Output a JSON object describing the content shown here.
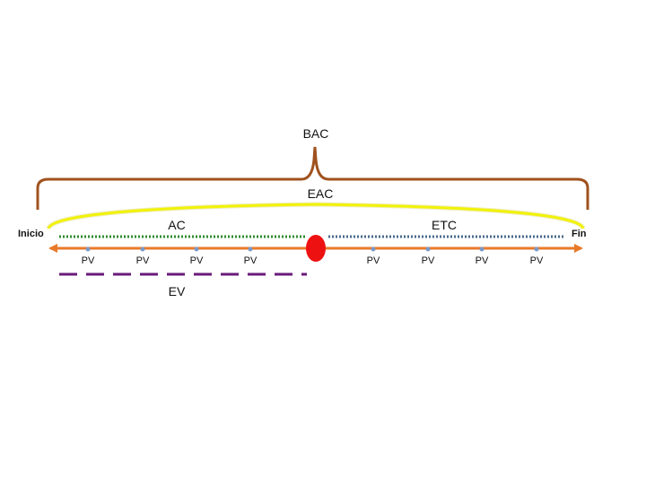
{
  "labels": {
    "bac": "BAC",
    "eac": "EAC",
    "ac": "AC",
    "etc": "ETC",
    "ev": "EV",
    "start": "Inicio",
    "end": "Fin",
    "pv": [
      "PV",
      "PV",
      "PV",
      "PV",
      "PV",
      "PV",
      "PV",
      "PV"
    ]
  },
  "colors": {
    "brace": "#a0521e",
    "eac_arc": "#f2f20a",
    "eac_arc_glow": "#d8d86a",
    "ac_line": "#2e8b2e",
    "etc_line": "#4a6a8a",
    "timeline": "#e87a2a",
    "pv_marker": "#7a9ac8",
    "status_point": "#ee1111",
    "ev_line": "#6a1a7a"
  }
}
